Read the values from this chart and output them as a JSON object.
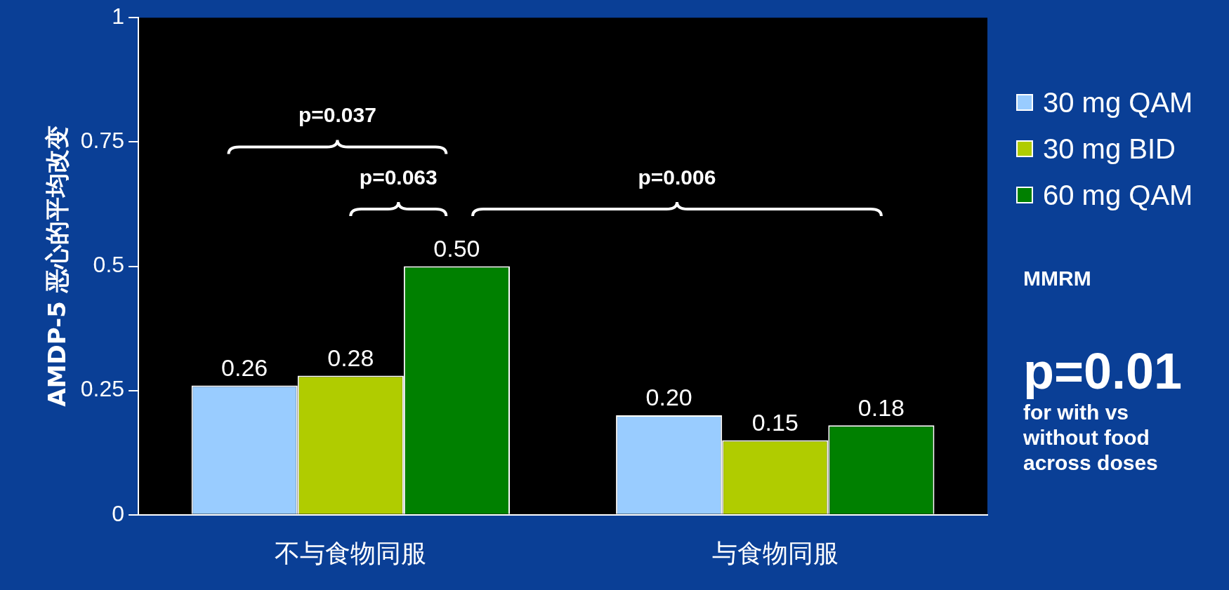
{
  "chart_data": {
    "type": "bar",
    "ylabel": "AMDP-5 恶心的平均改变",
    "categories": [
      "不与食物同服",
      "与食物同服"
    ],
    "series": [
      {
        "name": "30 mg QAM",
        "color": "#99ccff",
        "values": [
          0.26,
          0.2
        ],
        "value_labels": [
          "0.26",
          "0.20"
        ]
      },
      {
        "name": "30 mg BID",
        "color": "#b0cc00",
        "values": [
          0.28,
          0.15
        ],
        "value_labels": [
          "0.28",
          "0.15"
        ]
      },
      {
        "name": "60 mg QAM",
        "color": "#008000",
        "values": [
          0.5,
          0.18
        ],
        "value_labels": [
          "0.50",
          "0.18"
        ]
      }
    ],
    "ylim": [
      0,
      1
    ],
    "yticks": [
      0,
      0.25,
      0.5,
      0.75,
      1
    ],
    "grid": false,
    "legend": "right",
    "annotations": [
      "p=0.037",
      "p=0.063",
      "p=0.006",
      "MMRM",
      "p=0.01",
      "for with vs without food across doses"
    ]
  }
}
